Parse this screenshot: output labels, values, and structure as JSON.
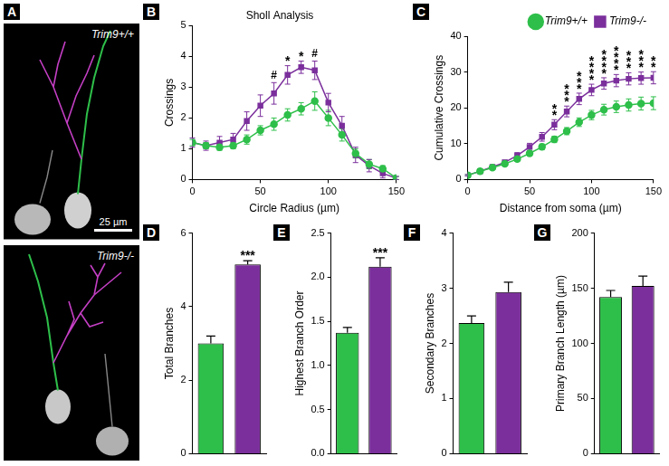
{
  "chart_data": [
    {
      "panel": "A",
      "type": "image",
      "images": [
        {
          "label": "Trim9+/+"
        },
        {
          "label": "Trim9-/-"
        }
      ],
      "scale_bar": "25 µm"
    },
    {
      "panel": "B",
      "type": "line",
      "title": "Sholl Analysis",
      "xlabel": "Circle Radius (µm)",
      "ylabel": "Crossings",
      "x": [
        0,
        10,
        20,
        30,
        40,
        50,
        60,
        70,
        80,
        90,
        100,
        110,
        120,
        130,
        140,
        150
      ],
      "series": [
        {
          "name": "Trim9+/+",
          "color": "#2ebf4a",
          "marker": "circle",
          "values": [
            1.2,
            1.1,
            1.05,
            1.1,
            1.3,
            1.6,
            1.8,
            2.1,
            2.3,
            2.55,
            2.0,
            1.45,
            0.85,
            0.5,
            0.35,
            0.05
          ],
          "errors": [
            0.1,
            0.1,
            0.1,
            0.1,
            0.15,
            0.15,
            0.2,
            0.2,
            0.2,
            0.3,
            0.25,
            0.2,
            0.15,
            0.15,
            0.1,
            0.05
          ]
        },
        {
          "name": "Trim9-/-",
          "color": "#7b2f9c",
          "marker": "square",
          "values": [
            1.2,
            1.1,
            1.2,
            1.3,
            1.9,
            2.4,
            2.8,
            3.4,
            3.65,
            3.55,
            2.5,
            1.75,
            0.8,
            0.45,
            0.2,
            0.05
          ],
          "errors": [
            0.15,
            0.15,
            0.2,
            0.2,
            0.3,
            0.35,
            0.35,
            0.3,
            0.2,
            0.3,
            0.3,
            0.3,
            0.25,
            0.2,
            0.15,
            0.05
          ]
        }
      ],
      "xlim": [
        0,
        150
      ],
      "xticks": [
        0,
        50,
        100,
        150
      ],
      "ylim": [
        0,
        5
      ],
      "yticks": [
        0,
        1,
        2,
        3,
        4,
        5
      ],
      "annotations": [
        {
          "x": 60,
          "text": "#"
        },
        {
          "x": 70,
          "text": "*"
        },
        {
          "x": 80,
          "text": "*"
        },
        {
          "x": 90,
          "text": "#"
        }
      ]
    },
    {
      "panel": "C",
      "type": "line",
      "xlabel": "Distance from soma (µm)",
      "ylabel": "Cumulative Crossings",
      "legend": "top",
      "x": [
        0,
        10,
        20,
        30,
        40,
        50,
        60,
        70,
        80,
        90,
        100,
        110,
        120,
        130,
        140,
        150
      ],
      "series": [
        {
          "name": "Trim9+/+",
          "color": "#2ebf4a",
          "marker": "circle",
          "values": [
            1.2,
            2.3,
            3.3,
            4.4,
            5.7,
            7.3,
            9.1,
            11.2,
            13.5,
            16.0,
            18.0,
            19.5,
            20.3,
            20.8,
            21.2,
            21.3
          ],
          "errors": [
            0.2,
            0.3,
            0.4,
            0.5,
            0.6,
            0.7,
            0.8,
            0.9,
            1.0,
            1.2,
            1.3,
            1.5,
            1.6,
            1.7,
            1.8,
            1.8
          ]
        },
        {
          "name": "Trim9-/-",
          "color": "#7b2f9c",
          "marker": "square",
          "values": [
            1.2,
            2.3,
            3.5,
            4.8,
            6.7,
            9.1,
            11.9,
            15.3,
            19.0,
            22.5,
            25.0,
            26.8,
            27.6,
            28.1,
            28.3,
            28.4
          ],
          "errors": [
            0.2,
            0.3,
            0.4,
            0.6,
            0.8,
            1.0,
            1.2,
            1.4,
            1.5,
            1.6,
            1.6,
            1.6,
            1.7,
            1.7,
            1.7,
            1.7
          ]
        }
      ],
      "xlim": [
        0,
        150
      ],
      "xticks": [
        0,
        50,
        100,
        150
      ],
      "ylim": [
        0,
        40
      ],
      "yticks": [
        0,
        10,
        20,
        30,
        40
      ],
      "annotations": [
        {
          "x": 70,
          "text": "**"
        },
        {
          "x": 80,
          "text": "***"
        },
        {
          "x": 90,
          "text": "***"
        },
        {
          "x": 100,
          "text": "****"
        },
        {
          "x": 110,
          "text": "****"
        },
        {
          "x": 120,
          "text": "****"
        },
        {
          "x": 130,
          "text": "***"
        },
        {
          "x": 140,
          "text": "***"
        },
        {
          "x": 150,
          "text": "**"
        }
      ]
    },
    {
      "panel": "D",
      "type": "bar",
      "ylabel": "Total Branches",
      "categories": [
        null,
        null
      ],
      "values": [
        3.0,
        5.15
      ],
      "errors": [
        0.2,
        0.1
      ],
      "colors": [
        "#2ebf4a",
        "#7b2f9c"
      ],
      "ylim": [
        0,
        6
      ],
      "yticks": [
        0,
        2,
        4,
        6
      ],
      "tick_labels": "y",
      "annotations": [
        {
          "index": 1,
          "text": "***"
        }
      ]
    },
    {
      "panel": "E",
      "type": "bar",
      "ylabel": "Highest Branch Order",
      "categories": [
        null,
        null
      ],
      "values": [
        1.37,
        2.12
      ],
      "errors": [
        0.06,
        0.1
      ],
      "colors": [
        "#2ebf4a",
        "#7b2f9c"
      ],
      "ylim": [
        0,
        2.5
      ],
      "yticks": [
        {
          "value": 0,
          "label": "0.0"
        },
        0.5,
        {
          "value": 1,
          "label": "1.0"
        },
        1.5,
        {
          "value": 2,
          "label": "2.0"
        },
        2.5
      ],
      "tick_labels": "y",
      "annotations": [
        {
          "index": 1,
          "text": "***"
        }
      ]
    },
    {
      "panel": "F",
      "type": "bar",
      "ylabel": "Secondary Branches",
      "categories": [
        null,
        null
      ],
      "values": [
        2.37,
        2.93
      ],
      "errors": [
        0.13,
        0.18
      ],
      "colors": [
        "#2ebf4a",
        "#7b2f9c"
      ],
      "ylim": [
        0,
        4
      ],
      "yticks": [
        0,
        1,
        2,
        3,
        4
      ],
      "tick_labels": "y"
    },
    {
      "panel": "G",
      "type": "bar",
      "ylabel": "Primary Branch Length (µm)",
      "categories": [
        null,
        null
      ],
      "values": [
        142,
        152
      ],
      "errors": [
        6,
        9
      ],
      "colors": [
        "#2ebf4a",
        "#7b2f9c"
      ],
      "ylim": [
        0,
        200
      ],
      "yticks": [
        0,
        50,
        100,
        150,
        200
      ],
      "tick_labels": "y"
    }
  ]
}
